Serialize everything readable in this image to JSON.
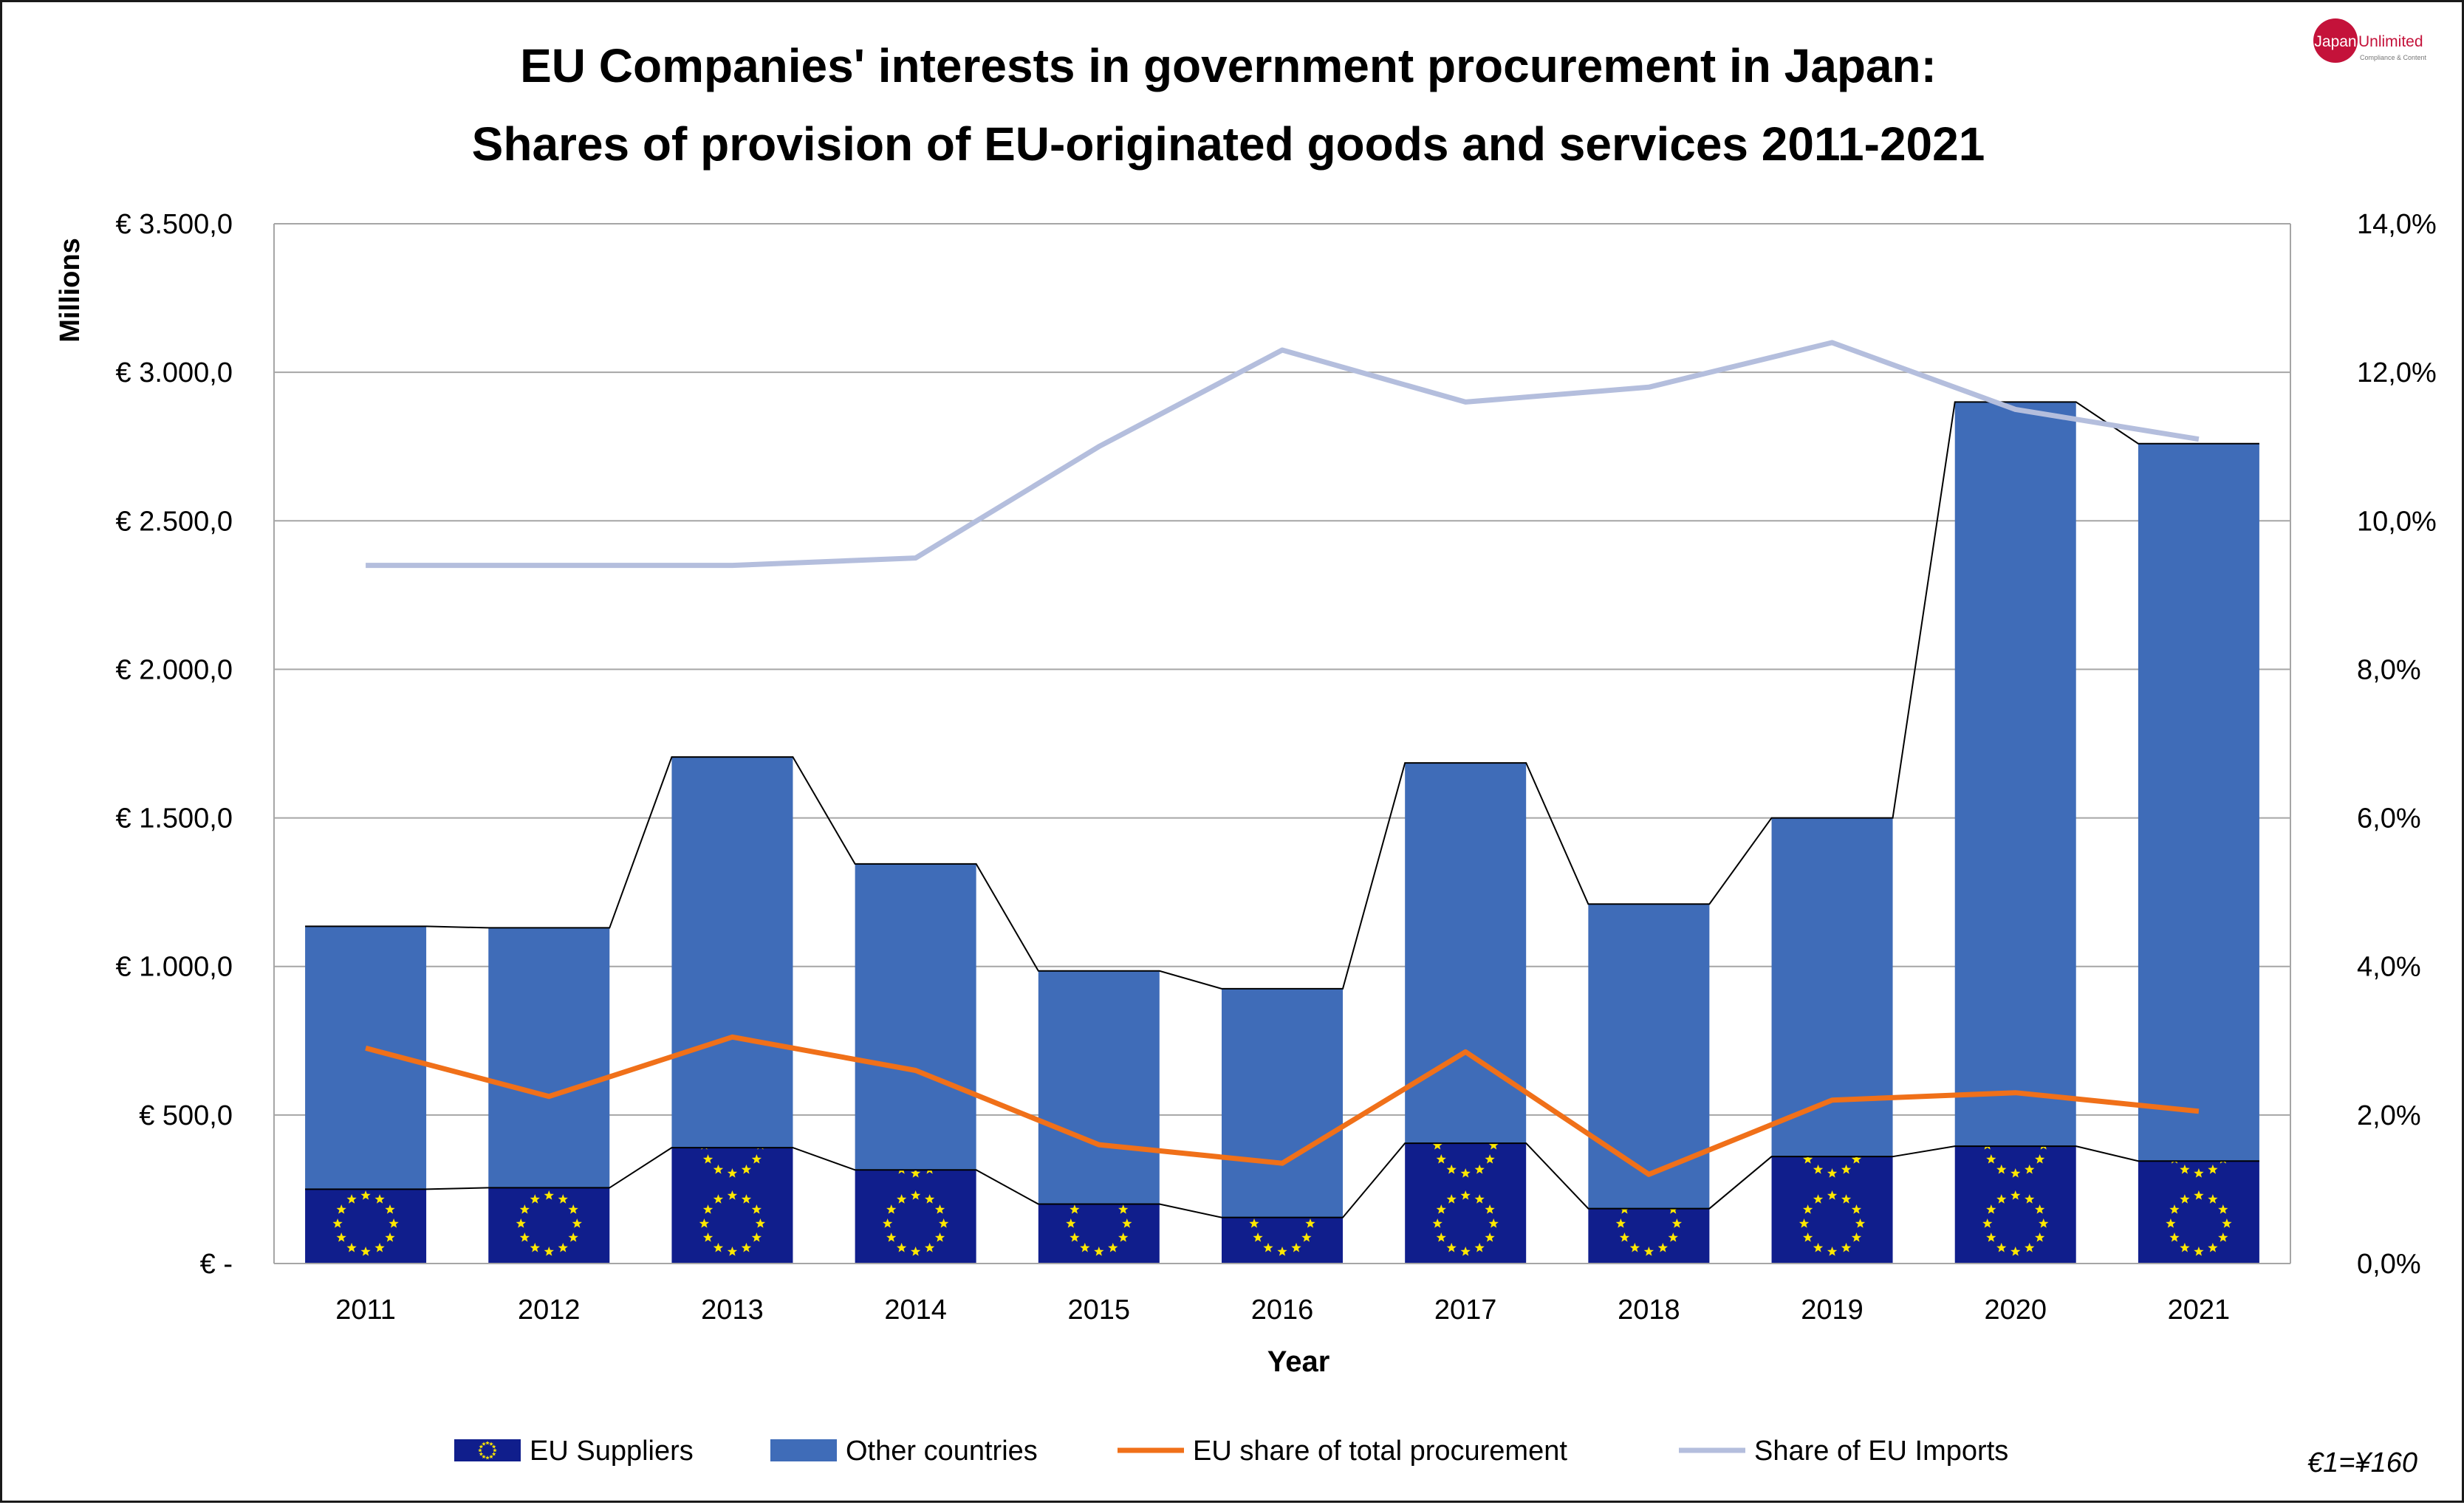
{
  "logo": {
    "word1": "Japan",
    "word2": "Unlimited",
    "word3": "Compliance & Content"
  },
  "chart_data": {
    "type": "bar",
    "title_line1": "EU Companies' interests in government procurement in Japan:",
    "title_line2": "Shares of provision of EU-originated goods and services 2011-2021",
    "xlabel": "Year",
    "ylabel": "Millions",
    "ylim": [
      0,
      3500
    ],
    "y2lim": [
      0,
      14
    ],
    "y_ticks": [
      "€ -",
      "€ 500,0",
      "€ 1.000,0",
      "€ 1.500,0",
      "€ 2.000,0",
      "€ 2.500,0",
      "€ 3.000,0",
      "€ 3.500,0"
    ],
    "y2_ticks": [
      "0,0%",
      "2,0%",
      "4,0%",
      "6,0%",
      "8,0%",
      "10,0%",
      "12,0%",
      "14,0%"
    ],
    "categories": [
      "2011",
      "2012",
      "2013",
      "2014",
      "2015",
      "2016",
      "2017",
      "2018",
      "2019",
      "2020",
      "2021"
    ],
    "stacked": true,
    "grid": true,
    "legend_position": "bottom",
    "series": [
      {
        "name": "EU Suppliers",
        "type": "bar",
        "axis": "left",
        "color": "#101E8C",
        "values": [
          250,
          255,
          390,
          315,
          200,
          155,
          405,
          185,
          360,
          395,
          345
        ]
      },
      {
        "name": "Other countries",
        "type": "bar",
        "axis": "left",
        "color": "#3F6CB8",
        "values": [
          885,
          875,
          1315,
          1030,
          785,
          770,
          1280,
          1025,
          1140,
          2505,
          2415
        ]
      },
      {
        "name": "EU share of total procurement",
        "type": "line",
        "axis": "right",
        "color": "#F07019",
        "values": [
          2.9,
          2.25,
          3.05,
          2.6,
          1.6,
          1.35,
          2.85,
          1.2,
          2.2,
          2.3,
          2.05
        ]
      },
      {
        "name": "Share of EU Imports",
        "type": "line",
        "axis": "right",
        "color": "#B4BEDD",
        "values": [
          9.4,
          9.4,
          9.4,
          9.5,
          11.0,
          12.3,
          11.6,
          11.8,
          12.4,
          11.5,
          11.1
        ]
      }
    ],
    "note": "€1=¥160"
  }
}
